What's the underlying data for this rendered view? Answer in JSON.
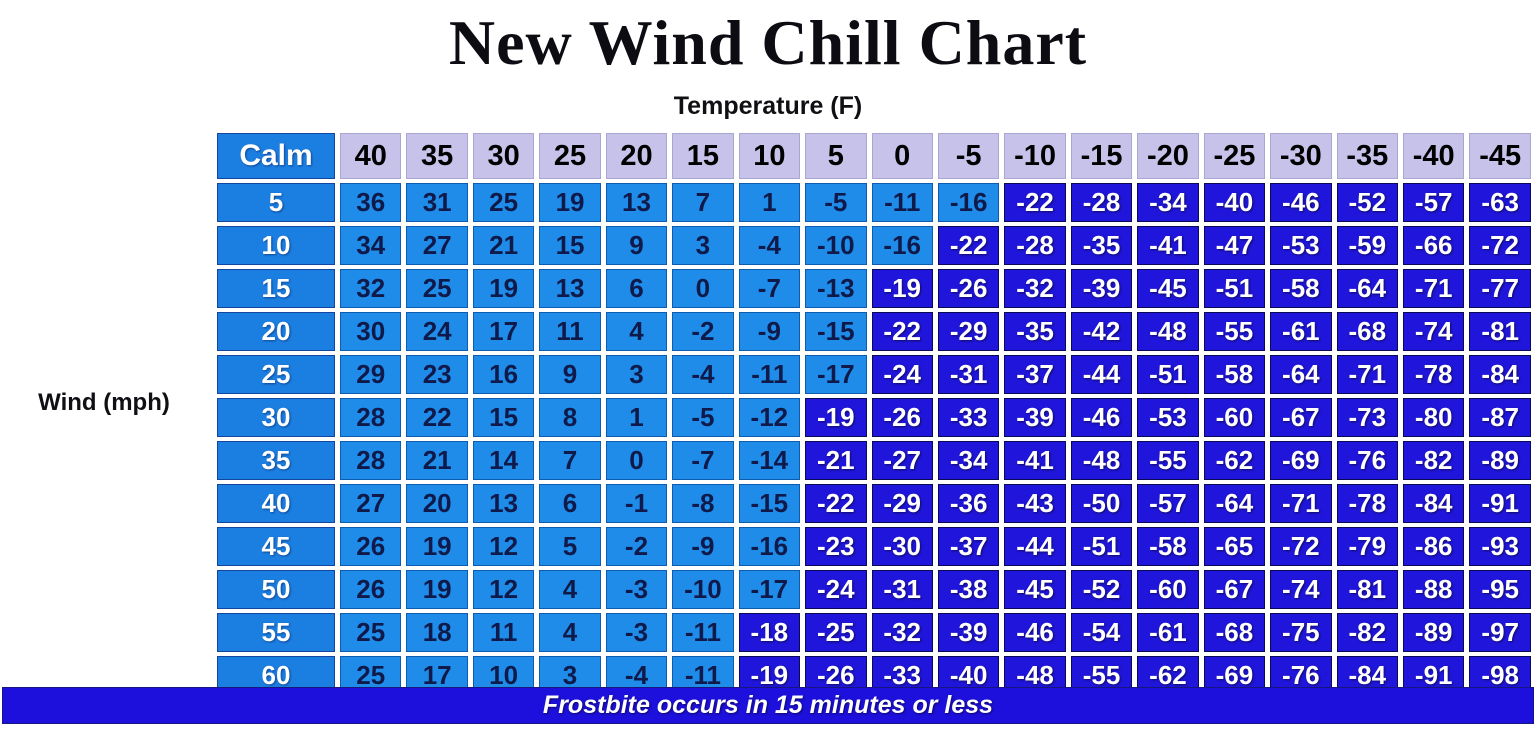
{
  "title": "New Wind Chill Chart",
  "temperature_axis_label": "Temperature (F)",
  "wind_axis_label": "Wind (mph)",
  "banner": "Frostbite occurs in 15 minutes or less",
  "colors": {
    "light_cell": "#1E8CE8",
    "dark_cell": "#2016DB",
    "header_cell": "#C7C2E9",
    "wind_cell": "#1B7FE2",
    "banner_bg": "#1D10DC",
    "light_cell_text": "#0F1A4A"
  },
  "chart_data": {
    "type": "heatmap",
    "title": "New Wind Chill Chart",
    "xlabel": "Temperature (F)",
    "ylabel": "Wind (mph)",
    "corner_label": "Calm",
    "legend": "Frostbite occurs in 15 minutes or less",
    "frostbite_threshold_f": -18,
    "temperatures": [
      40,
      35,
      30,
      25,
      20,
      15,
      10,
      5,
      0,
      -5,
      -10,
      -15,
      -20,
      -25,
      -30,
      -35,
      -40,
      -45
    ],
    "wind_speeds": [
      5,
      10,
      15,
      20,
      25,
      30,
      35,
      40,
      45,
      50,
      55,
      60
    ],
    "rows": [
      {
        "wind": 5,
        "values": [
          36,
          31,
          25,
          19,
          13,
          7,
          1,
          -5,
          -11,
          -16,
          -22,
          -28,
          -34,
          -40,
          -46,
          -52,
          -57,
          -63
        ]
      },
      {
        "wind": 10,
        "values": [
          34,
          27,
          21,
          15,
          9,
          3,
          -4,
          -10,
          -16,
          -22,
          -28,
          -35,
          -41,
          -47,
          -53,
          -59,
          -66,
          -72
        ]
      },
      {
        "wind": 15,
        "values": [
          32,
          25,
          19,
          13,
          6,
          0,
          -7,
          -13,
          -19,
          -26,
          -32,
          -39,
          -45,
          -51,
          -58,
          -64,
          -71,
          -77
        ]
      },
      {
        "wind": 20,
        "values": [
          30,
          24,
          17,
          11,
          4,
          -2,
          -9,
          -15,
          -22,
          -29,
          -35,
          -42,
          -48,
          -55,
          -61,
          -68,
          -74,
          -81
        ]
      },
      {
        "wind": 25,
        "values": [
          29,
          23,
          16,
          9,
          3,
          -4,
          -11,
          -17,
          -24,
          -31,
          -37,
          -44,
          -51,
          -58,
          -64,
          -71,
          -78,
          -84
        ]
      },
      {
        "wind": 30,
        "values": [
          28,
          22,
          15,
          8,
          1,
          -5,
          -12,
          -19,
          -26,
          -33,
          -39,
          -46,
          -53,
          -60,
          -67,
          -73,
          -80,
          -87
        ]
      },
      {
        "wind": 35,
        "values": [
          28,
          21,
          14,
          7,
          0,
          -7,
          -14,
          -21,
          -27,
          -34,
          -41,
          -48,
          -55,
          -62,
          -69,
          -76,
          -82,
          -89
        ]
      },
      {
        "wind": 40,
        "values": [
          27,
          20,
          13,
          6,
          -1,
          -8,
          -15,
          -22,
          -29,
          -36,
          -43,
          -50,
          -57,
          -64,
          -71,
          -78,
          -84,
          -91
        ]
      },
      {
        "wind": 45,
        "values": [
          26,
          19,
          12,
          5,
          -2,
          -9,
          -16,
          -23,
          -30,
          -37,
          -44,
          -51,
          -58,
          -65,
          -72,
          -79,
          -86,
          -93
        ]
      },
      {
        "wind": 50,
        "values": [
          26,
          19,
          12,
          4,
          -3,
          -10,
          -17,
          -24,
          -31,
          -38,
          -45,
          -52,
          -60,
          -67,
          -74,
          -81,
          -88,
          -95
        ]
      },
      {
        "wind": 55,
        "values": [
          25,
          18,
          11,
          4,
          -3,
          -11,
          -18,
          -25,
          -32,
          -39,
          -46,
          -54,
          -61,
          -68,
          -75,
          -82,
          -89,
          -97
        ]
      },
      {
        "wind": 60,
        "values": [
          25,
          17,
          10,
          3,
          -4,
          -11,
          -19,
          -26,
          -33,
          -40,
          -48,
          -55,
          -62,
          -69,
          -76,
          -84,
          -91,
          -98
        ]
      }
    ]
  }
}
